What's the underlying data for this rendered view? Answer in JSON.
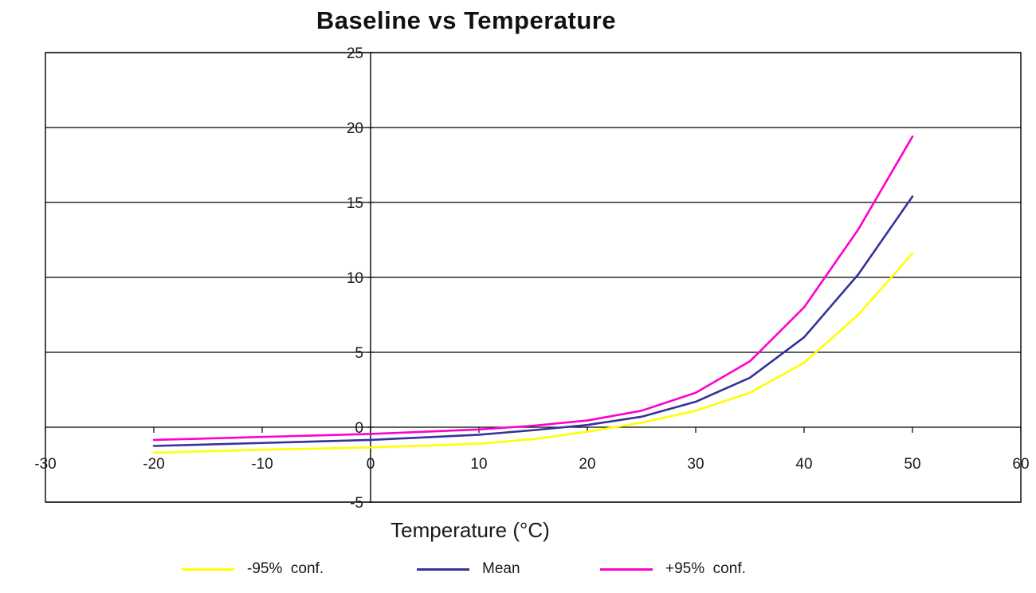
{
  "title": "Baseline vs Temperature",
  "chart_data": {
    "type": "line",
    "title": "Baseline vs Temperature",
    "xlabel": "Temperature (°C)",
    "ylabel": "",
    "xlim": [
      -30,
      60
    ],
    "ylim": [
      -5,
      25
    ],
    "x_ticks": [
      -30,
      -20,
      -10,
      0,
      10,
      20,
      30,
      40,
      50,
      60
    ],
    "y_ticks": [
      25,
      20,
      15,
      10,
      5,
      0,
      -5
    ],
    "grid": "horizontal",
    "legend_position": "bottom",
    "axis_color": "#000000",
    "x": [
      -20,
      -10,
      0,
      10,
      15,
      20,
      25,
      30,
      35,
      40,
      45,
      50
    ],
    "series": [
      {
        "name": "-95%  conf.",
        "color": "#ffff00",
        "values": [
          -1.7,
          -1.5,
          -1.35,
          -1.1,
          -0.8,
          -0.3,
          0.3,
          1.1,
          2.3,
          4.3,
          7.5,
          11.6
        ]
      },
      {
        "name": "Mean",
        "color": "#333399",
        "values": [
          -1.25,
          -1.05,
          -0.85,
          -0.5,
          -0.2,
          0.15,
          0.7,
          1.7,
          3.3,
          6.0,
          10.2,
          15.4
        ]
      },
      {
        "name": "+95%  conf.",
        "color": "#ff00cc",
        "values": [
          -0.85,
          -0.65,
          -0.45,
          -0.15,
          0.1,
          0.45,
          1.1,
          2.3,
          4.4,
          8.0,
          13.2,
          19.4
        ]
      }
    ]
  }
}
